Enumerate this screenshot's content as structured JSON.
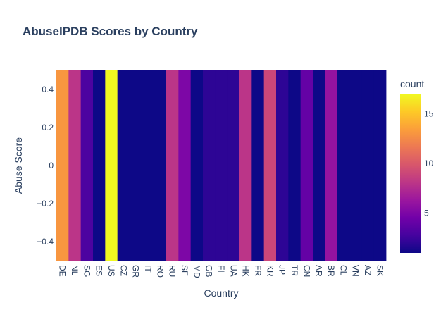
{
  "chart_data": {
    "type": "heatmap",
    "title": "AbuseIPDB Scores by Country",
    "xlabel": "Country",
    "ylabel": "Abuse Score",
    "categories": [
      "DE",
      "NL",
      "SG",
      "ES",
      "US",
      "CZ",
      "GR",
      "IT",
      "RO",
      "RU",
      "SE",
      "MD",
      "GB",
      "FI",
      "UA",
      "HK",
      "FR",
      "KR",
      "JP",
      "TR",
      "CN",
      "AR",
      "BR",
      "CL",
      "VN",
      "AZ",
      "SK"
    ],
    "values": [
      13,
      8,
      3,
      1,
      17,
      1,
      1,
      1,
      1,
      8,
      5,
      1,
      2,
      2,
      2,
      8,
      1,
      9,
      2,
      1,
      4,
      1,
      6,
      1,
      1,
      1,
      1
    ],
    "y_value": 0,
    "ylim": [
      -0.5,
      0.5
    ],
    "y_ticks": [
      {
        "value": 0.4,
        "label": "0.4"
      },
      {
        "value": 0.2,
        "label": "0.2"
      },
      {
        "value": 0,
        "label": "0"
      },
      {
        "value": -0.2,
        "label": "−0.2"
      },
      {
        "value": -0.4,
        "label": "−0.4"
      }
    ],
    "colorbar": {
      "title": "count",
      "range": [
        1,
        17
      ],
      "ticks": [
        {
          "value": 5,
          "label": "5"
        },
        {
          "value": 10,
          "label": "10"
        },
        {
          "value": 15,
          "label": "15"
        }
      ],
      "colorscale": [
        "#0d0887",
        "#46039f",
        "#7201a8",
        "#9c179e",
        "#bd3786",
        "#d8576b",
        "#ed7953",
        "#fb9f3a",
        "#fdca26",
        "#f0f921"
      ]
    }
  }
}
